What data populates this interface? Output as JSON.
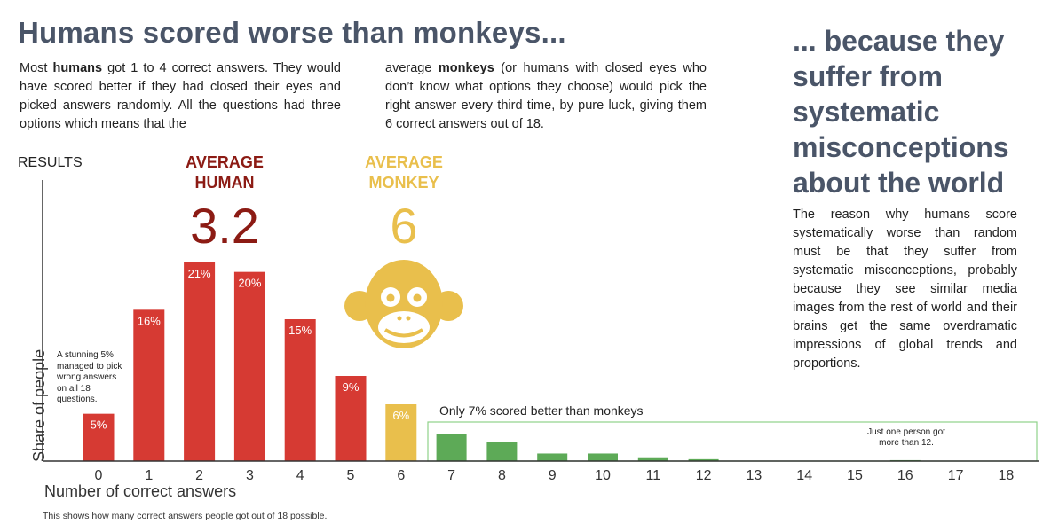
{
  "headline": "Humans scored worse than monkeys...",
  "para_left": {
    "t1": "Most ",
    "b1": "humans",
    "t2": " got 1 to 4 correct answers. They would have scored better if they had closed their eyes and picked answers randomly. All the questions had three options which means that the"
  },
  "para_mid": {
    "t1": "average ",
    "b1": "monkeys",
    "t2": " (or humans with closed eyes who don’t know what options they choose) would pick the right answer every third time, by pure luck, giving them 6 correct answers out of 18."
  },
  "side": {
    "title": "... because they suffer from systematic misconceptions about the world",
    "body": "The reason why humans score systematically worse than random must be that they suffer from systematic misconceptions, probably because they see similar media images from the rest of world and their brains get the same overdramatic impressions of global trends and proportions."
  },
  "results_label": "RESULTS",
  "average_human": {
    "label_line1": "AVERAGE",
    "label_line2": "HUMAN",
    "value": "3.2"
  },
  "average_monkey": {
    "label_line1": "AVERAGE",
    "label_line2": "MONKEY",
    "value": "6"
  },
  "annotations": {
    "stunning": "A stunning 5% managed to pick wrong answers on all 18 questions.",
    "better_than_monkeys": "Only 7% scored better than monkeys",
    "one_person": "Just one person got more than 12."
  },
  "footnote": "This shows how many correct answers people got out of 18 possible.",
  "colors": {
    "human_red": "#d63a33",
    "monkey_yellow": "#e9bf4c",
    "green": "#5daa57",
    "title_gray": "#4a5568",
    "dark_red": "#8c1b14"
  },
  "icons": {
    "monkey": "monkey-face-icon"
  },
  "chart_data": {
    "type": "bar",
    "title": "",
    "xlabel": "Number of correct answers",
    "ylabel": "Share of people",
    "categories": [
      "0",
      "1",
      "2",
      "3",
      "4",
      "5",
      "6",
      "7",
      "8",
      "9",
      "10",
      "11",
      "12",
      "13",
      "14",
      "15",
      "16",
      "17",
      "18"
    ],
    "values": [
      5,
      16,
      21,
      20,
      15,
      9,
      6,
      2.9,
      2,
      0.8,
      0.8,
      0.4,
      0.2,
      0,
      0,
      0,
      0.1,
      0,
      0
    ],
    "value_labels": [
      "5%",
      "16%",
      "21%",
      "20%",
      "15%",
      "9%",
      "6%",
      "",
      "",
      "",
      "",
      "",
      "",
      "",
      "",
      "",
      "",
      "",
      ""
    ],
    "bar_groups": [
      "red",
      "red",
      "red",
      "red",
      "red",
      "red",
      "yellow",
      "green",
      "green",
      "green",
      "green",
      "green",
      "green",
      "green",
      "green",
      "green",
      "green",
      "green",
      "green"
    ],
    "ylim": [
      0,
      24
    ],
    "grid": false
  }
}
